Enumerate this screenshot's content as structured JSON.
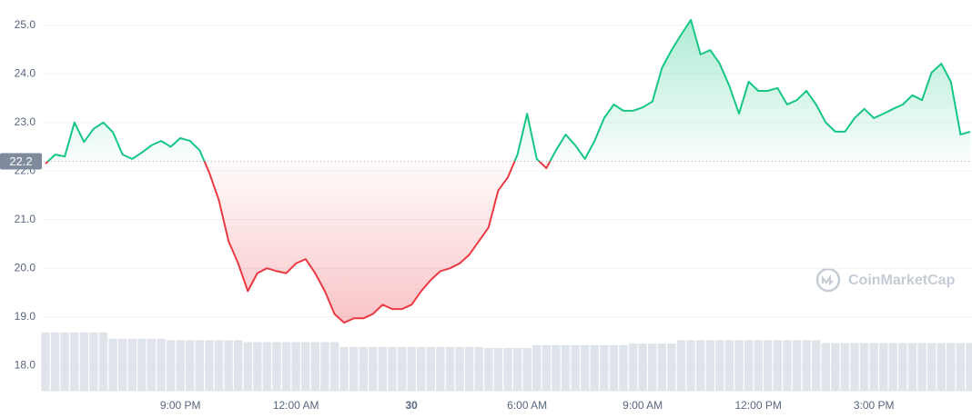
{
  "chart_data": {
    "type": "line",
    "categories": [
      null,
      null,
      null,
      null,
      null,
      null,
      null,
      null,
      null,
      null,
      null,
      null,
      null,
      null,
      "9:00 PM",
      null,
      null,
      null,
      null,
      null,
      null,
      null,
      null,
      null,
      null,
      null,
      "12:00 AM",
      null,
      null,
      null,
      null,
      null,
      null,
      null,
      null,
      null,
      null,
      null,
      "30",
      null,
      null,
      null,
      null,
      null,
      null,
      null,
      null,
      null,
      null,
      null,
      "6:00 AM",
      null,
      null,
      null,
      null,
      null,
      null,
      null,
      null,
      null,
      null,
      null,
      "9:00 AM",
      null,
      null,
      null,
      null,
      null,
      null,
      null,
      null,
      null,
      null,
      null,
      "12:00 PM",
      null,
      null,
      null,
      null,
      null,
      null,
      null,
      null,
      null,
      null,
      null,
      "3:00 PM",
      null,
      null,
      null,
      null,
      null,
      null,
      null,
      null,
      null,
      null
    ],
    "values": [
      22.15,
      22.34,
      22.3,
      23.0,
      22.6,
      22.87,
      23.0,
      22.8,
      22.34,
      22.25,
      22.38,
      22.53,
      22.62,
      22.5,
      22.68,
      22.62,
      22.43,
      21.97,
      21.4,
      20.56,
      20.1,
      19.53,
      19.9,
      20.0,
      19.94,
      19.9,
      20.1,
      20.19,
      19.9,
      19.53,
      19.06,
      18.88,
      18.97,
      18.97,
      19.06,
      19.25,
      19.16,
      19.16,
      19.25,
      19.53,
      19.76,
      19.94,
      20.0,
      20.1,
      20.28,
      20.56,
      20.84,
      21.6,
      21.87,
      22.34,
      23.18,
      22.25,
      22.06,
      22.43,
      22.75,
      22.53,
      22.25,
      22.62,
      23.09,
      23.37,
      23.24,
      23.24,
      23.31,
      23.43,
      24.12,
      24.49,
      24.81,
      25.11,
      24.4,
      24.49,
      24.21,
      23.75,
      23.18,
      23.84,
      23.65,
      23.65,
      23.71,
      23.37,
      23.46,
      23.65,
      23.37,
      23.0,
      22.81,
      22.81,
      23.09,
      23.28,
      23.09,
      23.18,
      23.28,
      23.37,
      23.56,
      23.46,
      24.03,
      24.21,
      23.84,
      22.75,
      22.81
    ],
    "volume": [
      18.68,
      18.68,
      18.68,
      18.68,
      18.68,
      18.68,
      18.68,
      18.55,
      18.55,
      18.55,
      18.55,
      18.55,
      18.55,
      18.52,
      18.52,
      18.52,
      18.52,
      18.52,
      18.52,
      18.52,
      18.52,
      18.48,
      18.48,
      18.48,
      18.48,
      18.48,
      18.48,
      18.48,
      18.48,
      18.48,
      18.48,
      18.38,
      18.38,
      18.38,
      18.38,
      18.38,
      18.38,
      18.38,
      18.38,
      18.38,
      18.38,
      18.38,
      18.38,
      18.38,
      18.38,
      18.38,
      18.36,
      18.36,
      18.36,
      18.36,
      18.36,
      18.42,
      18.42,
      18.42,
      18.42,
      18.42,
      18.42,
      18.42,
      18.42,
      18.42,
      18.42,
      18.45,
      18.45,
      18.45,
      18.45,
      18.45,
      18.52,
      18.52,
      18.52,
      18.52,
      18.52,
      18.52,
      18.52,
      18.52,
      18.52,
      18.52,
      18.52,
      18.52,
      18.52,
      18.52,
      18.52,
      18.46,
      18.46,
      18.46,
      18.46,
      18.46,
      18.46,
      18.46,
      18.46,
      18.46,
      18.46,
      18.46,
      18.46,
      18.46,
      18.46,
      18.46,
      18.46
    ],
    "baseline": 22.2,
    "color_up": "#16c784",
    "color_down": "#ea3943",
    "volume_color": "#dfe3ea",
    "ylim": [
      17.48,
      25.52
    ],
    "yticks": [
      {
        "value": 18,
        "label": "18.0"
      },
      {
        "value": 19,
        "label": "19.0"
      },
      {
        "value": 20,
        "label": "20.0"
      },
      {
        "value": 21,
        "label": "21.0"
      },
      {
        "value": 22,
        "label": "22.0"
      },
      {
        "value": 23,
        "label": "23.0"
      },
      {
        "value": 24,
        "label": "24.0"
      },
      {
        "value": 25,
        "label": "25.0"
      }
    ],
    "grid": true,
    "watermark": "CoinMarketCap"
  }
}
